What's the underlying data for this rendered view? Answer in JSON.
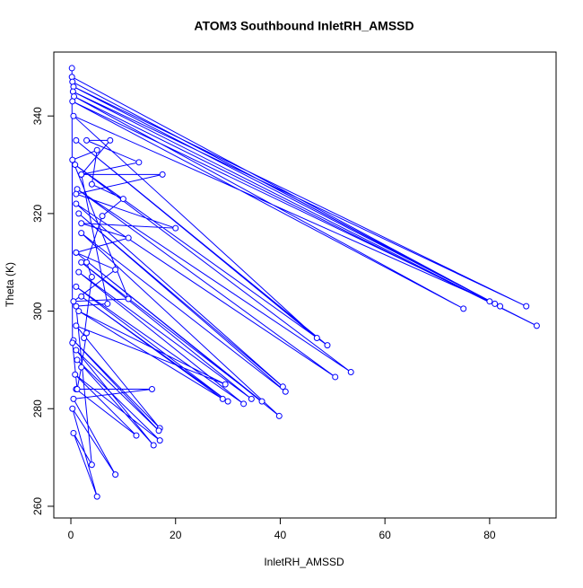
{
  "chart_data": {
    "type": "line",
    "title": "ATOM3 Southbound InletRH_AMSSD",
    "x_label": "InletRH_AMSSD",
    "y_label": "Theta (K)",
    "color": "#0000ff",
    "markers": true,
    "grid": false,
    "xlim": [
      -3.26,
      92.7
    ],
    "ylim": [
      257.6,
      353.1
    ],
    "xticks": [
      0,
      20,
      40,
      60,
      80
    ],
    "yticks": [
      260,
      280,
      300,
      320,
      340
    ],
    "x": [
      0.2,
      81,
      0.3,
      82,
      0.5,
      87,
      0.4,
      89,
      0.6,
      75,
      0.3,
      80,
      0.5,
      47,
      1,
      49,
      0.8,
      53.5,
      1.2,
      50.5,
      1,
      40.5,
      1.5,
      41,
      2,
      39.8,
      1,
      36.5,
      2,
      34.5,
      1.5,
      33,
      1,
      30,
      2,
      29,
      1.5,
      29.5,
      1,
      17,
      0.5,
      16.8,
      1,
      15.8,
      1.2,
      17,
      0.8,
      12.5,
      1,
      15.5,
      0.5,
      8.5,
      0.3,
      5,
      0.5,
      4,
      1,
      7,
      2,
      13,
      3,
      7.5,
      2,
      17.5,
      1,
      20,
      2,
      11,
      1,
      8.5,
      0.5,
      11,
      0.3,
      5,
      4,
      10,
      6,
      3,
      4,
      2.5,
      3,
      2,
      1.2,
      0.3,
      0.2
    ],
    "values": [
      348,
      301.5,
      347,
      301,
      346,
      301,
      345,
      297,
      344,
      300.5,
      343,
      302,
      340,
      294.5,
      335,
      293,
      330,
      287.5,
      325,
      286.5,
      322,
      284.5,
      320,
      283.5,
      316,
      278.5,
      312,
      281.5,
      310,
      282,
      308,
      281,
      305,
      281.5,
      303,
      282,
      300,
      285,
      297,
      276,
      294,
      275.5,
      292,
      272.5,
      290,
      273.5,
      287,
      274.5,
      284,
      284,
      282,
      266.5,
      280,
      262,
      275,
      268.5,
      301,
      301.5,
      328,
      330.5,
      335,
      335,
      328,
      328,
      324,
      317,
      318,
      315,
      312,
      308.5,
      302,
      302.5,
      331,
      333,
      326,
      323,
      319.5,
      310,
      307,
      294.5,
      295.5,
      288.5,
      284,
      293.5,
      349.8
    ]
  }
}
